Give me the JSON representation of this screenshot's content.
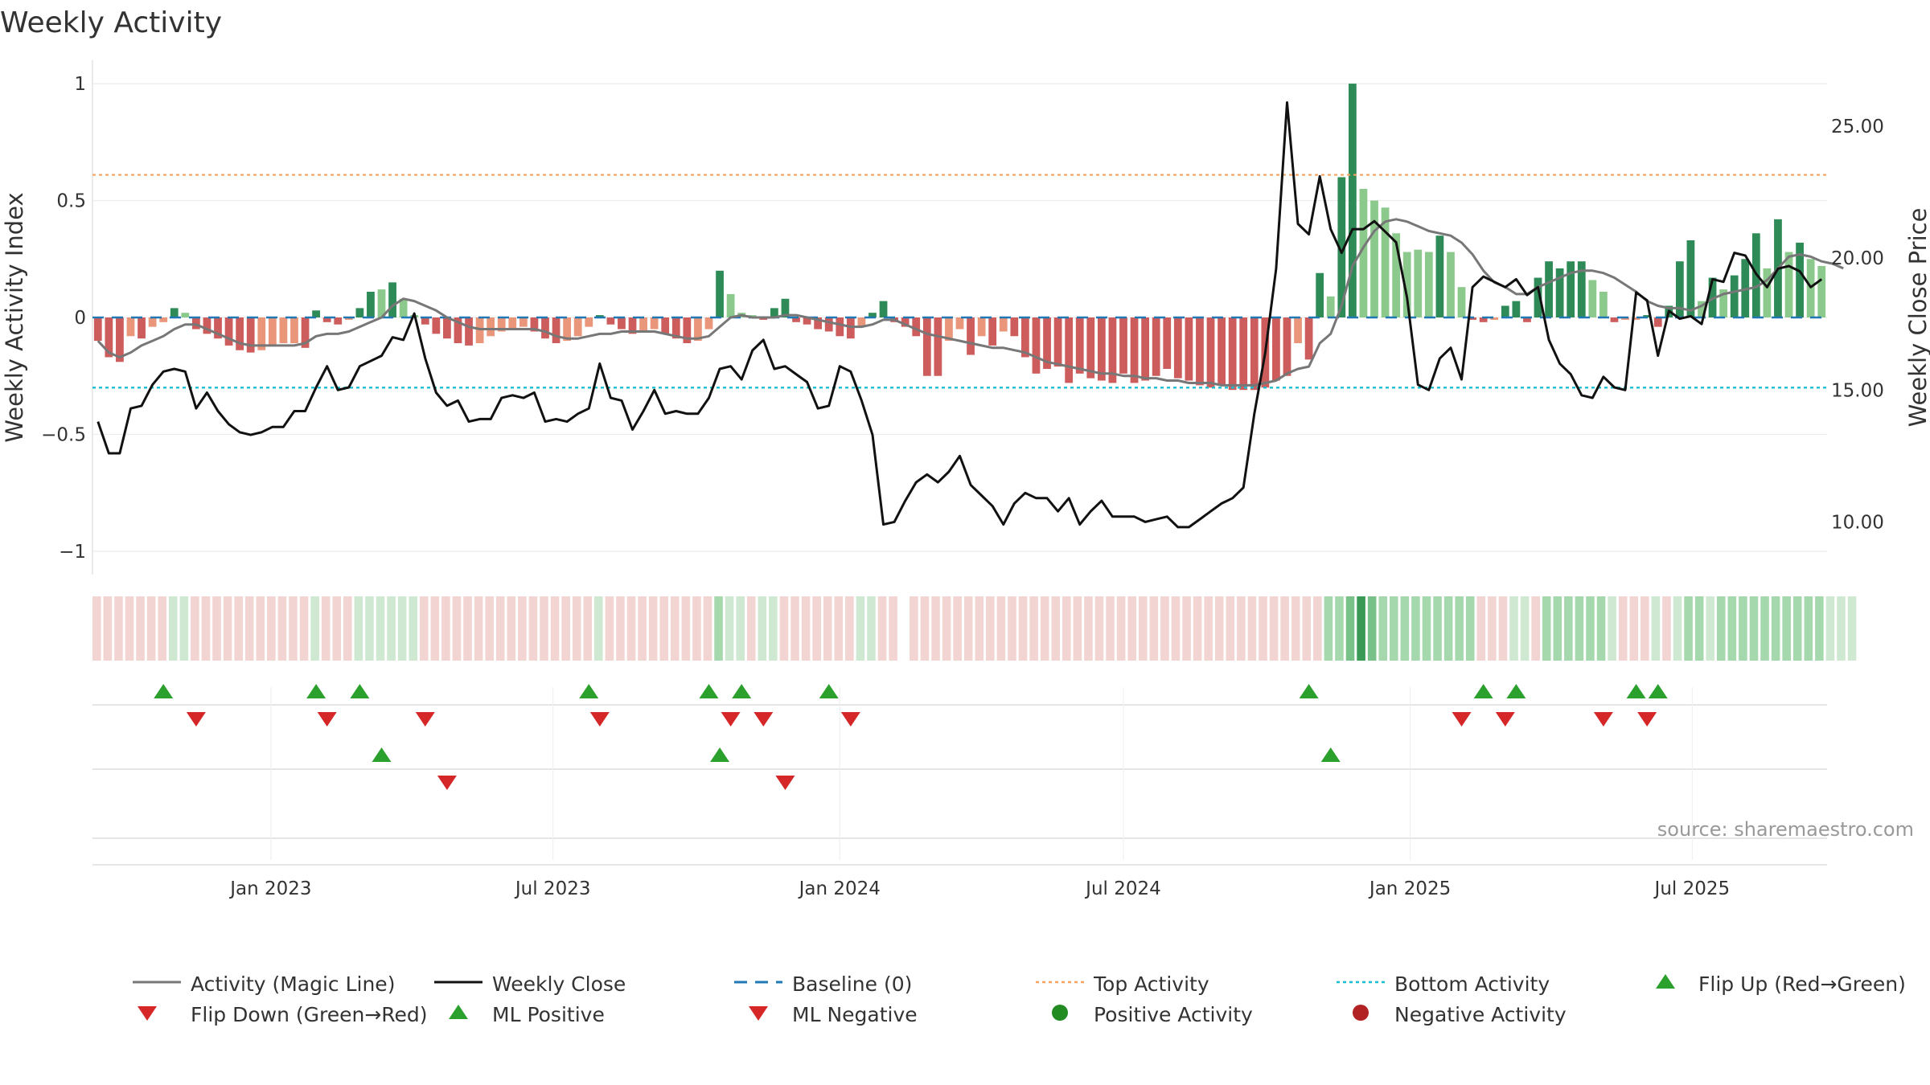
{
  "chart_data": {
    "type": "bar",
    "title": "Weekly Activity",
    "ylabel_left": "Weekly Activity Index",
    "ylabel_right": "Weekly Close Price",
    "source": "source: sharemaestro.com",
    "ylim_left": [
      -1.1,
      1.1
    ],
    "ylim_right": [
      8.0,
      27.5
    ],
    "left_ticks": [
      {
        "v": 1,
        "label": "1"
      },
      {
        "v": 0.5,
        "label": "0.5"
      },
      {
        "v": 0,
        "label": "0"
      },
      {
        "v": -0.5,
        "label": "−0.5"
      },
      {
        "v": -1,
        "label": "−1"
      }
    ],
    "right_ticks": [
      {
        "v": 25,
        "label": "25.00"
      },
      {
        "v": 20,
        "label": "20.00"
      },
      {
        "v": 15,
        "label": "15.00"
      },
      {
        "v": 10,
        "label": "10.00"
      }
    ],
    "x_start": "2022-09-12",
    "week_count": 159,
    "x_ticks": [
      {
        "label": "Jan 2023",
        "date": "2023-01-01"
      },
      {
        "label": "Jul 2023",
        "date": "2023-07-01"
      },
      {
        "label": "Jan 2024",
        "date": "2024-01-01"
      },
      {
        "label": "Jul 2024",
        "date": "2024-07-01"
      },
      {
        "label": "Jan 2025",
        "date": "2025-01-01"
      },
      {
        "label": "Jul 2025",
        "date": "2025-07-01"
      }
    ],
    "top_activity": 0.61,
    "bottom_activity": -0.3,
    "baseline": 0,
    "colors": {
      "pos_strong": "#2e8b57",
      "pos_weak": "#8cc98c",
      "neg_strong": "#cd5c5c",
      "neg_weak": "#e9967a",
      "magic_line": "#777777",
      "close_line": "#111111",
      "baseline": "#1f77b4",
      "top_line": "#f4a460",
      "bottom_line": "#17becf",
      "flip_up": "#2ca02c",
      "flip_down": "#d62728",
      "pos_dot": "#228b22",
      "neg_dot": "#b22222"
    },
    "segments": [
      {
        "start": 0,
        "end": 6,
        "kind": "neg",
        "values": [
          -0.1,
          -0.17,
          -0.19,
          -0.08,
          -0.09,
          -0.04,
          -0.02
        ]
      },
      {
        "start": 7,
        "end": 8,
        "kind": "pos",
        "values": [
          0.04,
          0.02
        ]
      },
      {
        "start": 9,
        "end": 19,
        "kind": "neg",
        "values": [
          -0.05,
          -0.07,
          -0.09,
          -0.12,
          -0.14,
          -0.15,
          -0.14,
          -0.12,
          -0.11,
          -0.11,
          -0.13
        ]
      },
      {
        "start": 20,
        "end": 20,
        "kind": "pos",
        "values": [
          0.03
        ]
      },
      {
        "start": 21,
        "end": 23,
        "kind": "neg",
        "values": [
          -0.02,
          -0.03,
          -0.01
        ]
      },
      {
        "start": 24,
        "end": 29,
        "kind": "pos",
        "values": [
          0.04,
          0.11,
          0.12,
          0.15,
          0.08,
          0.01
        ]
      },
      {
        "start": 30,
        "end": 45,
        "kind": "neg",
        "values": [
          -0.03,
          -0.07,
          -0.09,
          -0.11,
          -0.12,
          -0.11,
          -0.08,
          -0.06,
          -0.05,
          -0.04,
          -0.06,
          -0.09,
          -0.11,
          -0.1,
          -0.08,
          -0.04
        ]
      },
      {
        "start": 46,
        "end": 46,
        "kind": "pos",
        "values": [
          0.01
        ]
      },
      {
        "start": 47,
        "end": 56,
        "kind": "neg",
        "values": [
          -0.03,
          -0.05,
          -0.07,
          -0.06,
          -0.05,
          -0.07,
          -0.09,
          -0.11,
          -0.1,
          -0.05
        ]
      },
      {
        "start": 57,
        "end": 60,
        "kind": "pos",
        "values": [
          0.2,
          0.1,
          0.02,
          0.01
        ]
      },
      {
        "start": 61,
        "end": 61,
        "kind": "neg",
        "values": [
          -0.01
        ]
      },
      {
        "start": 62,
        "end": 63,
        "kind": "pos",
        "values": [
          0.04,
          0.08
        ]
      },
      {
        "start": 64,
        "end": 70,
        "kind": "neg",
        "values": [
          -0.02,
          -0.03,
          -0.05,
          -0.06,
          -0.08,
          -0.09,
          -0.04
        ]
      },
      {
        "start": 71,
        "end": 72,
        "kind": "pos",
        "values": [
          0.02,
          0.07
        ]
      },
      {
        "start": 73,
        "end": 74,
        "kind": "neg",
        "values": [
          -0.02,
          -0.04
        ]
      },
      {
        "start": 75,
        "end": 81,
        "kind": "neg",
        "values": [
          -0.08,
          -0.25,
          -0.25,
          -0.1,
          -0.05,
          -0.16,
          -0.08
        ]
      },
      {
        "start": 82,
        "end": 104,
        "kind": "neg",
        "values": [
          -0.12,
          -0.06,
          -0.08,
          -0.17,
          -0.24,
          -0.22,
          -0.21,
          -0.28,
          -0.24,
          -0.26,
          -0.27,
          -0.28,
          -0.24,
          -0.28,
          -0.27,
          -0.25,
          -0.22,
          -0.26,
          -0.27,
          -0.29,
          -0.3,
          -0.29,
          -0.31
        ]
      },
      {
        "start": 105,
        "end": 111,
        "kind": "neg",
        "values": [
          -0.31,
          -0.31,
          -0.3,
          -0.27,
          -0.25,
          -0.11,
          -0.18
        ]
      },
      {
        "start": 112,
        "end": 125,
        "kind": "pos",
        "values": [
          0.19,
          0.09,
          0.6,
          1.0,
          0.55,
          0.5,
          0.47,
          0.36,
          0.28,
          0.29,
          0.28,
          0.35,
          0.28,
          0.13
        ]
      },
      {
        "start": 126,
        "end": 128,
        "kind": "neg",
        "values": [
          -0.01,
          -0.02,
          -0.01
        ]
      },
      {
        "start": 129,
        "end": 130,
        "kind": "pos",
        "values": [
          0.05,
          0.07
        ]
      },
      {
        "start": 131,
        "end": 131,
        "kind": "neg",
        "values": [
          -0.02
        ]
      },
      {
        "start": 132,
        "end": 138,
        "kind": "pos",
        "values": [
          0.17,
          0.24,
          0.21,
          0.24,
          0.24,
          0.16,
          0.11
        ]
      },
      {
        "start": 139,
        "end": 141,
        "kind": "neg",
        "values": [
          -0.02,
          -0.01,
          -0.01
        ]
      },
      {
        "start": 142,
        "end": 142,
        "kind": "pos",
        "values": [
          0.01
        ]
      },
      {
        "start": 143,
        "end": 143,
        "kind": "neg",
        "values": [
          -0.04
        ]
      },
      {
        "start": 144,
        "end": 158,
        "kind": "pos",
        "values": [
          0.05,
          0.24,
          0.33,
          0.07,
          0.17,
          0.12,
          0.18,
          0.25,
          0.36,
          0.21,
          0.42,
          0.28,
          0.32,
          0.25,
          0.22
        ]
      }
    ],
    "magic_line": [
      -0.1,
      -0.15,
      -0.17,
      -0.15,
      -0.12,
      -0.1,
      -0.08,
      -0.05,
      -0.03,
      -0.03,
      -0.05,
      -0.07,
      -0.09,
      -0.11,
      -0.12,
      -0.12,
      -0.12,
      -0.12,
      -0.12,
      -0.11,
      -0.08,
      -0.07,
      -0.07,
      -0.06,
      -0.04,
      -0.02,
      0.0,
      0.05,
      0.08,
      0.07,
      0.05,
      0.03,
      0.0,
      -0.02,
      -0.04,
      -0.05,
      -0.05,
      -0.05,
      -0.05,
      -0.05,
      -0.05,
      -0.06,
      -0.08,
      -0.09,
      -0.09,
      -0.08,
      -0.07,
      -0.07,
      -0.06,
      -0.06,
      -0.06,
      -0.06,
      -0.07,
      -0.08,
      -0.09,
      -0.09,
      -0.08,
      -0.04,
      0.0,
      0.01,
      0.0,
      0.0,
      0.0,
      0.01,
      0.01,
      0.0,
      -0.01,
      -0.02,
      -0.03,
      -0.04,
      -0.04,
      -0.03,
      -0.01,
      -0.01,
      -0.03,
      -0.05,
      -0.07,
      -0.08,
      -0.09,
      -0.1,
      -0.11,
      -0.12,
      -0.13,
      -0.13,
      -0.14,
      -0.15,
      -0.17,
      -0.19,
      -0.2,
      -0.21,
      -0.22,
      -0.23,
      -0.24,
      -0.24,
      -0.25,
      -0.25,
      -0.26,
      -0.26,
      -0.27,
      -0.27,
      -0.28,
      -0.28,
      -0.28,
      -0.29,
      -0.29,
      -0.29,
      -0.29,
      -0.28,
      -0.27,
      -0.24,
      -0.22,
      -0.21,
      -0.11,
      -0.07,
      0.05,
      0.22,
      0.3,
      0.37,
      0.41,
      0.42,
      0.41,
      0.39,
      0.37,
      0.36,
      0.35,
      0.32,
      0.27,
      0.2,
      0.15,
      0.13,
      0.1,
      0.1,
      0.13,
      0.15,
      0.17,
      0.19,
      0.2,
      0.2,
      0.19,
      0.17,
      0.14,
      0.11,
      0.07,
      0.05,
      0.04,
      0.04,
      0.03,
      0.05,
      0.08,
      0.1,
      0.11,
      0.12,
      0.13,
      0.16,
      0.21,
      0.26,
      0.27,
      0.26,
      0.24,
      0.23,
      0.21
    ],
    "close": [
      13.8,
      12.6,
      12.6,
      14.3,
      14.4,
      15.2,
      15.7,
      15.8,
      15.7,
      14.3,
      14.9,
      14.2,
      13.7,
      13.4,
      13.3,
      13.4,
      13.6,
      13.6,
      14.2,
      14.2,
      15.1,
      15.9,
      15.0,
      15.1,
      15.9,
      16.1,
      16.3,
      17.0,
      16.9,
      17.9,
      16.2,
      14.9,
      14.4,
      14.6,
      13.8,
      13.9,
      13.9,
      14.7,
      14.8,
      14.7,
      14.9,
      13.8,
      13.9,
      13.8,
      14.1,
      14.3,
      16.0,
      14.7,
      14.6,
      13.5,
      14.2,
      15.0,
      14.1,
      14.2,
      14.1,
      14.1,
      14.7,
      15.8,
      15.9,
      15.4,
      16.5,
      16.9,
      15.8,
      15.9,
      15.6,
      15.3,
      14.3,
      14.4,
      15.9,
      15.7,
      14.6,
      13.3,
      9.9,
      10.0,
      10.8,
      11.5,
      11.8,
      11.5,
      11.9,
      12.5,
      11.4,
      11.0,
      10.6,
      9.9,
      10.7,
      11.1,
      10.9,
      10.9,
      10.4,
      10.9,
      9.9,
      10.4,
      10.8,
      10.2,
      10.2,
      10.2,
      10.0,
      10.1,
      10.2,
      9.8,
      9.8,
      10.1,
      10.4,
      10.7,
      10.9,
      11.3,
      14.1,
      16.4,
      19.6,
      25.9,
      21.3,
      20.9,
      23.1,
      21.1,
      20.2,
      21.1,
      21.1,
      21.4,
      21.0,
      20.6,
      18.5,
      15.2,
      15.0,
      16.2,
      16.6,
      15.4,
      18.9,
      19.3,
      19.1,
      18.9,
      19.2,
      18.6,
      18.9,
      16.9,
      16.0,
      15.6,
      14.8,
      14.7,
      15.5,
      15.1,
      15.0,
      18.7,
      18.4,
      16.3,
      18.0,
      17.7,
      17.8,
      17.5,
      19.2,
      19.1,
      20.2,
      20.1,
      19.4,
      18.9,
      19.6,
      19.7,
      19.5,
      18.9,
      19.2
    ],
    "strip": [
      -1,
      -1,
      -1,
      -1,
      -1,
      -1,
      -1,
      1,
      1,
      -1,
      -1,
      -1,
      -1,
      -1,
      -1,
      -1,
      -1,
      -1,
      -1,
      -1,
      1,
      -1,
      -1,
      -1,
      1,
      1,
      1,
      1,
      1,
      1,
      -1,
      -1,
      -1,
      -1,
      -1,
      -1,
      -1,
      -1,
      -1,
      -1,
      -1,
      -1,
      -1,
      -1,
      -1,
      -1,
      1,
      -1,
      -1,
      -1,
      -1,
      -1,
      -1,
      -1,
      -1,
      -1,
      -1,
      2,
      1,
      1,
      -1,
      1,
      1,
      -1,
      -1,
      -1,
      -1,
      -1,
      -1,
      -1,
      1,
      1,
      -1,
      -1,
      -1,
      -1,
      -1,
      -1,
      -1,
      -1,
      -1,
      -1,
      -1,
      -1,
      -1,
      -1,
      -1,
      -1,
      -1,
      -1,
      -1,
      -1,
      -1,
      -1,
      -1,
      -1,
      -1,
      -1,
      -1,
      -1,
      -1,
      -1,
      -1,
      -1,
      -1,
      -1,
      -1,
      -1,
      -1,
      -1,
      -1,
      -1,
      2,
      2,
      3,
      4,
      3,
      2,
      2,
      2,
      2,
      2,
      2,
      2,
      2,
      2,
      -1,
      -1,
      -1,
      1,
      1,
      -1,
      2,
      2,
      2,
      2,
      2,
      2,
      1,
      -1,
      -1,
      -1,
      1,
      -1,
      1,
      2,
      2,
      1,
      2,
      2,
      2,
      2,
      2,
      2,
      2,
      2,
      2,
      2,
      1,
      1,
      1
    ],
    "strip_gap_after": 73,
    "flip_up": [
      6,
      20,
      24,
      45,
      56,
      59,
      67,
      111,
      127,
      130,
      141,
      143
    ],
    "flip_down": [
      9,
      21,
      30,
      46,
      58,
      61,
      69,
      125,
      129,
      138,
      142
    ],
    "ml_positive": [
      26,
      57,
      113
    ],
    "ml_negative": [
      32,
      63
    ],
    "legend": [
      "Activity (Magic Line)",
      "Weekly Close",
      "Baseline (0)",
      "Top Activity",
      "Bottom Activity",
      "Flip Up (Red→Green)",
      "Flip Down (Green→Red)",
      "ML Positive",
      "ML Negative",
      "Positive Activity",
      "Negative Activity"
    ]
  }
}
